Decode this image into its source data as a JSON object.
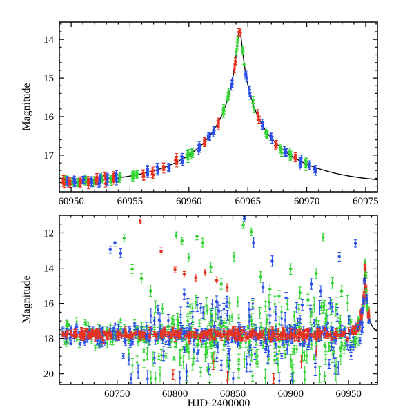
{
  "seed": 1234567,
  "colors": {
    "red": "#e83320",
    "green": "#35d435",
    "blue": "#2b50e8",
    "model": "#000000",
    "axis": "#000000",
    "background": "#ffffff"
  },
  "chart_data": [
    {
      "type": "scatter",
      "panel": "top",
      "title": "",
      "ylabel": "Magnitude",
      "xlabel": "",
      "xlim": [
        60949,
        60976
      ],
      "ylim_top": 13.55,
      "ylim_bottom": 17.95,
      "xticks": [
        60950,
        60955,
        60960,
        60965,
        60970,
        60975
      ],
      "yticks": [
        14,
        15,
        16,
        17
      ],
      "x_major_step": 5,
      "x_minor_step": 1,
      "y_major_step": 1,
      "y_minor_step": 0.2,
      "model": {
        "kind": "paczynski",
        "t0": 60964.3,
        "tE": 8.0,
        "u0": 0.025,
        "m_base": 17.78
      },
      "point_sigma_mag": 0.05,
      "point_err_mag": 0.09,
      "epoch_half_spread_days": 0.08,
      "epochs": [
        [
          60949.35,
          "r",
          5
        ],
        [
          60949.52,
          "g",
          4
        ],
        [
          60949.7,
          "b",
          5
        ],
        [
          60949.92,
          "r",
          4
        ],
        [
          60950.12,
          "g",
          5
        ],
        [
          60950.33,
          "b",
          4
        ],
        [
          60950.55,
          "g",
          4
        ],
        [
          60950.76,
          "r",
          5
        ],
        [
          60951.0,
          "b",
          4
        ],
        [
          60951.22,
          "g",
          5
        ],
        [
          60951.46,
          "r",
          4
        ],
        [
          60951.7,
          "b",
          5
        ],
        [
          60951.93,
          "g",
          4
        ],
        [
          60952.15,
          "r",
          5
        ],
        [
          60952.4,
          "b",
          4
        ],
        [
          60952.62,
          "g",
          5
        ],
        [
          60952.85,
          "r",
          4
        ],
        [
          60953.1,
          "b",
          5
        ],
        [
          60953.35,
          "g",
          4
        ],
        [
          60953.6,
          "r",
          4
        ],
        [
          60953.85,
          "b",
          4
        ],
        [
          60954.1,
          "g",
          4
        ],
        [
          60955.25,
          "g",
          5
        ],
        [
          60955.55,
          "g",
          4
        ],
        [
          60956.1,
          "r",
          4
        ],
        [
          60956.45,
          "b",
          4
        ],
        [
          60956.9,
          "r",
          4
        ],
        [
          60957.35,
          "b",
          4
        ],
        [
          60957.9,
          "r",
          4
        ],
        [
          60958.3,
          "b",
          4
        ],
        [
          60958.9,
          "r",
          4
        ],
        [
          60959.4,
          "b",
          4
        ],
        [
          60959.95,
          "g",
          5
        ],
        [
          60960.25,
          "g",
          4
        ],
        [
          60960.9,
          "b",
          6
        ],
        [
          60961.3,
          "r",
          5
        ],
        [
          60961.7,
          "b",
          4
        ],
        [
          60962.1,
          "b",
          4
        ],
        [
          60962.5,
          "r",
          4
        ],
        [
          60962.9,
          "g",
          4
        ],
        [
          60963.3,
          "g",
          4
        ],
        [
          60963.6,
          "b",
          4
        ],
        [
          60963.9,
          "r",
          4
        ],
        [
          60964.1,
          "g",
          4
        ],
        [
          60964.3,
          "r",
          3
        ],
        [
          60964.6,
          "g",
          4
        ],
        [
          60964.9,
          "b",
          4
        ],
        [
          60965.2,
          "b",
          4
        ],
        [
          60965.5,
          "g",
          4
        ],
        [
          60965.9,
          "r",
          4
        ],
        [
          60966.2,
          "b",
          4
        ],
        [
          60966.6,
          "g",
          4
        ],
        [
          60967.0,
          "b",
          4
        ],
        [
          60967.4,
          "r",
          4
        ],
        [
          60967.8,
          "g",
          4
        ],
        [
          60968.2,
          "b",
          4
        ],
        [
          60968.6,
          "g",
          4
        ],
        [
          60969.0,
          "r",
          4
        ],
        [
          60969.5,
          "b",
          4
        ],
        [
          60969.9,
          "g",
          4
        ],
        [
          60970.3,
          "b",
          4
        ],
        [
          60970.7,
          "b",
          3
        ]
      ]
    },
    {
      "type": "scatter",
      "panel": "bottom",
      "title": "",
      "ylabel": "Magnitude",
      "xlabel": "HJD-2400000",
      "xlim": [
        60700,
        60975
      ],
      "ylim_top": 11.0,
      "ylim_bottom": 20.6,
      "xticks": [
        60750,
        60800,
        60850,
        60900,
        60950
      ],
      "yticks": [
        12,
        14,
        16,
        18,
        20
      ],
      "x_major_step": 50,
      "x_minor_step": 10,
      "y_major_step": 2,
      "y_minor_step": 0.5,
      "model": {
        "kind": "paczynski",
        "t0": 60964.3,
        "tE": 8.0,
        "u0": 0.025,
        "m_base": 17.78
      },
      "baseline": {
        "t_min": 60703,
        "t_max": 60968,
        "colors": {
          "r": {
            "n": 380,
            "sigma": 0.13
          },
          "g": {
            "n": 310,
            "sigma": 0.4
          },
          "b": {
            "n": 310,
            "sigma": 0.28
          }
        },
        "err_range": [
          0.08,
          0.3
        ]
      },
      "up_spread": {
        "t_min": 60772,
        "t_max": 60952,
        "mag_min": 15.9,
        "mag_max": 17.2,
        "colors": {
          "g": {
            "n": 55
          },
          "b": {
            "n": 40
          }
        },
        "err_range": [
          0.2,
          0.45
        ]
      },
      "faint_outliers": {
        "t_min": 60755,
        "t_max": 60950,
        "mag_min": 18.7,
        "mag_max": 20.45,
        "colors": {
          "g": {
            "n": 50
          },
          "b": {
            "n": 28
          },
          "r": {
            "n": 6
          }
        },
        "err_range": [
          0.25,
          0.5
        ]
      },
      "rise_cluster": {
        "t_min": 60957.5,
        "t_max": 60968,
        "err": 0.13,
        "colors": {
          "r": {
            "n": 46,
            "sigma": 0.1
          },
          "g": {
            "n": 10,
            "sigma": 0.16
          },
          "b": {
            "n": 10,
            "sigma": 0.16
          }
        }
      },
      "outliers": [
        [
          60770,
          11.35,
          "r",
          0.12
        ],
        [
          60788,
          13.05,
          "r",
          0.2
        ],
        [
          60800,
          14.1,
          "r",
          0.16
        ],
        [
          60808,
          14.35,
          "r",
          0.16
        ],
        [
          60818,
          14.55,
          "r",
          0.18
        ],
        [
          60826,
          14.25,
          "r",
          0.16
        ],
        [
          60836,
          14.7,
          "r",
          0.2
        ],
        [
          60845,
          15.1,
          "r",
          0.22
        ],
        [
          60744,
          12.95,
          "b",
          0.2
        ],
        [
          60748,
          12.55,
          "b",
          0.2
        ],
        [
          60753,
          13.15,
          "b",
          0.25
        ],
        [
          60808,
          15.5,
          "b",
          0.3
        ],
        [
          60836,
          15.9,
          "b",
          0.32
        ],
        [
          60860,
          11.2,
          "b",
          0.15
        ],
        [
          60868,
          12.55,
          "b",
          0.3
        ],
        [
          60876,
          15.1,
          "b",
          0.3
        ],
        [
          60884,
          13.6,
          "b",
          0.3
        ],
        [
          60896,
          15.7,
          "b",
          0.33
        ],
        [
          60910,
          16.1,
          "b",
          0.3
        ],
        [
          60918,
          14.9,
          "b",
          0.3
        ],
        [
          60926,
          15.3,
          "b",
          0.3
        ],
        [
          60934,
          16.0,
          "b",
          0.33
        ],
        [
          60942,
          13.35,
          "b",
          0.25
        ],
        [
          60956,
          12.6,
          "b",
          0.2
        ],
        [
          60756,
          12.3,
          "g",
          0.2
        ],
        [
          60763,
          14.05,
          "g",
          0.25
        ],
        [
          60771,
          14.6,
          "g",
          0.3
        ],
        [
          60779,
          15.3,
          "g",
          0.3
        ],
        [
          60801,
          12.15,
          "g",
          0.2
        ],
        [
          60806,
          12.45,
          "g",
          0.2
        ],
        [
          60812,
          13.4,
          "g",
          0.25
        ],
        [
          60819,
          12.2,
          "g",
          0.2
        ],
        [
          60824,
          12.55,
          "g",
          0.25
        ],
        [
          60831,
          13.95,
          "g",
          0.3
        ],
        [
          60840,
          14.9,
          "g",
          0.3
        ],
        [
          60851,
          13.35,
          "g",
          0.25
        ],
        [
          60859,
          11.55,
          "g",
          0.2
        ],
        [
          60866,
          11.95,
          "g",
          0.2
        ],
        [
          60874,
          14.5,
          "g",
          0.3
        ],
        [
          60882,
          15.2,
          "g",
          0.3
        ],
        [
          60890,
          15.6,
          "g",
          0.33
        ],
        [
          60900,
          14.05,
          "g",
          0.3
        ],
        [
          60908,
          15.4,
          "g",
          0.33
        ],
        [
          60915,
          15.8,
          "g",
          0.33
        ],
        [
          60922,
          14.3,
          "g",
          0.3
        ],
        [
          60928,
          12.25,
          "g",
          0.2
        ],
        [
          60936,
          14.85,
          "g",
          0.3
        ],
        [
          60944,
          15.3,
          "g",
          0.3
        ]
      ]
    }
  ]
}
